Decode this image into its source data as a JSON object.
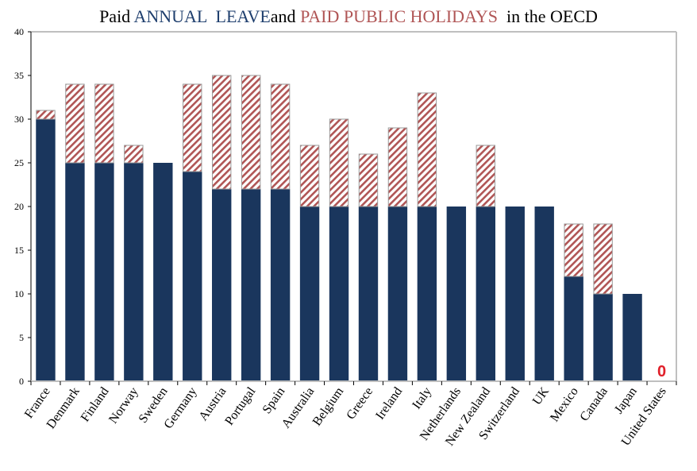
{
  "chart_data": {
    "type": "bar",
    "stacked": true,
    "title_parts": [
      {
        "text": "Paid ",
        "role": "plain"
      },
      {
        "text": "ANNUAL  LEAVE",
        "role": "annual"
      },
      {
        "text": "and ",
        "role": "plain"
      },
      {
        "text": "PAID PUBLIC HOLIDAYS",
        "role": "holidays"
      },
      {
        "text": "  in the OECD",
        "role": "plain"
      }
    ],
    "title": "Paid ANNUAL LEAVE and PAID PUBLIC HOLIDAYS in the OECD",
    "xlabel": "",
    "ylabel": "",
    "ylim": [
      0,
      40
    ],
    "yticks": [
      0,
      5,
      10,
      15,
      20,
      25,
      30,
      35,
      40
    ],
    "grid": false,
    "legend": "none (encoded in title colors)",
    "categories": [
      "France",
      "Denmark",
      "Finland",
      "Norway",
      "Sweden",
      "Germany",
      "Austria",
      "Portugal",
      "Spain",
      "Australia",
      "Belgium",
      "Greece",
      "Ireland",
      "Italy",
      "Netherlands",
      "New Zealand",
      "Switzerland",
      "UK",
      "Mexico",
      "Canada",
      "Japan",
      "United States"
    ],
    "series": [
      {
        "name": "Paid annual leave",
        "color": "#1a365d",
        "pattern": "solid",
        "values": [
          30,
          25,
          25,
          25,
          25,
          24,
          22,
          22,
          22,
          20,
          20,
          20,
          20,
          20,
          20,
          20,
          20,
          20,
          12,
          10,
          10,
          0
        ]
      },
      {
        "name": "Paid public holidays",
        "color": "#b05555",
        "pattern": "diagonal-hatch",
        "values": [
          1,
          9,
          9,
          2,
          0,
          10,
          13,
          13,
          12,
          7,
          10,
          6,
          9,
          13,
          0,
          7,
          0,
          0,
          6,
          8,
          0,
          0
        ]
      }
    ],
    "annotations": [
      {
        "category": "United States",
        "text": "0",
        "color": "#e0202a"
      }
    ]
  },
  "colors": {
    "annual": "#1a365d",
    "holidays": "#b05555",
    "title_annual": "#1f3f6e",
    "title_holidays": "#b05555",
    "frame": "#bfbfbf",
    "zero_label": "#e0202a"
  }
}
